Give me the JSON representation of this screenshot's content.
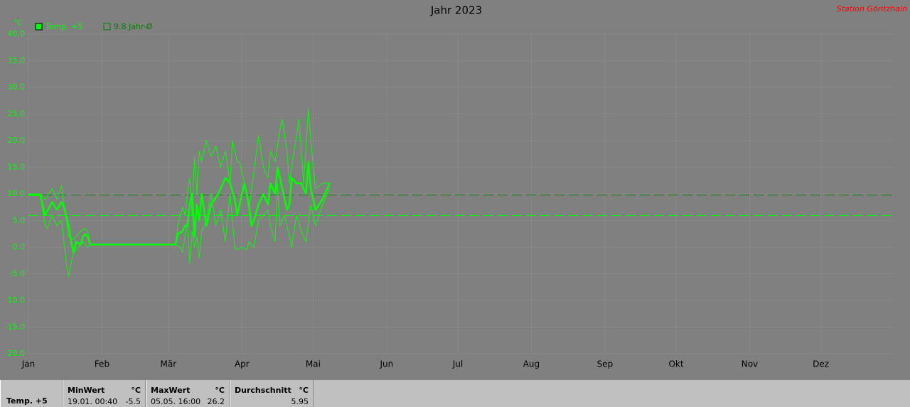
{
  "chart_data": {
    "type": "line",
    "title": "Jahr 2023",
    "station": "Station Göritzhain",
    "y_unit": "°C",
    "xlim": [
      0,
      365
    ],
    "ylim": [
      -20,
      40
    ],
    "xticks": [
      {
        "value": 0,
        "label": "Jan"
      },
      {
        "value": 31,
        "label": "Feb"
      },
      {
        "value": 59,
        "label": "Mär"
      },
      {
        "value": 90,
        "label": "Apr"
      },
      {
        "value": 120,
        "label": "Mai"
      },
      {
        "value": 151,
        "label": "Jun"
      },
      {
        "value": 181,
        "label": "Jul"
      },
      {
        "value": 212,
        "label": "Aug"
      },
      {
        "value": 243,
        "label": "Sep"
      },
      {
        "value": 273,
        "label": "Okt"
      },
      {
        "value": 304,
        "label": "Nov"
      },
      {
        "value": 334,
        "label": "Dez"
      }
    ],
    "yticks": [
      {
        "value": 40,
        "label": "40.0"
      },
      {
        "value": 35,
        "label": "35.0"
      },
      {
        "value": 30,
        "label": "30.0"
      },
      {
        "value": 25,
        "label": "25.0"
      },
      {
        "value": 20,
        "label": "20.0"
      },
      {
        "value": 15,
        "label": "15.0"
      },
      {
        "value": 10,
        "label": "10.0"
      },
      {
        "value": 5,
        "label": "5.0"
      },
      {
        "value": 0,
        "label": "0.0"
      },
      {
        "value": -5,
        "label": "-5.0"
      },
      {
        "value": -10,
        "label": "-10.0"
      },
      {
        "value": -15,
        "label": "-15.0"
      },
      {
        "value": -20,
        "label": "-20.0"
      }
    ],
    "grid": true,
    "series": [
      {
        "name": "Temp. +5",
        "color": "#00ff00",
        "width": 2.5,
        "x": [
          0,
          5,
          7,
          10,
          12,
          14,
          15,
          17,
          18,
          19,
          20,
          22,
          23,
          24,
          25,
          26,
          27,
          62,
          63,
          65,
          66,
          67,
          68,
          69,
          70,
          71,
          72,
          73,
          75,
          77,
          80,
          82,
          83,
          85,
          87,
          88,
          90,
          91,
          93,
          94,
          95,
          97,
          99,
          101,
          102,
          104,
          105,
          107,
          109,
          110,
          111,
          113,
          115,
          117,
          118,
          119,
          121,
          124,
          127
        ],
        "values": [
          9.8,
          9.8,
          6,
          8.5,
          7,
          8.5,
          7.5,
          4,
          1,
          -1,
          1,
          0.5,
          2,
          2.5,
          2,
          0.5,
          0.5,
          0.5,
          2.5,
          3,
          4,
          4,
          8,
          10,
          2,
          8,
          5,
          10,
          4,
          8,
          10,
          12,
          13,
          12,
          9,
          6,
          10,
          12,
          8,
          4,
          5,
          8,
          10,
          8,
          12,
          10,
          15,
          11,
          7,
          8,
          13,
          12,
          12,
          10,
          16,
          11,
          7,
          9,
          12
        ]
      },
      {
        "color": "#00ff00",
        "width": 1,
        "x": [
          0,
          5,
          7,
          10,
          12,
          14,
          15,
          17,
          19,
          22,
          24,
          25,
          26,
          62,
          63,
          64,
          65,
          66,
          67,
          68,
          69,
          70,
          71,
          72,
          73,
          75,
          77,
          79,
          81,
          83,
          85,
          86,
          88,
          89,
          91,
          93,
          95,
          97,
          99,
          101,
          102,
          104,
          106,
          107,
          109,
          110,
          112,
          114,
          116,
          118,
          119,
          121,
          124,
          127
        ],
        "values": [
          10,
          10,
          9,
          11,
          9,
          11.5,
          8,
          2,
          1.5,
          3,
          3.5,
          3,
          0.5,
          0.5,
          4,
          6,
          7.5,
          6,
          10,
          13,
          6,
          17,
          10,
          18,
          16,
          20,
          17,
          19,
          15,
          18,
          12,
          20,
          16,
          16,
          12,
          7,
          14,
          21,
          15,
          13,
          18,
          16,
          22,
          24,
          18,
          12,
          18,
          24,
          12,
          26,
          20,
          11,
          12,
          12
        ]
      },
      {
        "color": "#00ff00",
        "width": 1,
        "x": [
          0,
          5,
          7,
          8,
          10,
          12,
          14,
          16,
          17,
          18,
          19,
          21,
          23,
          25,
          26,
          62,
          64,
          65,
          66,
          67,
          68,
          69,
          70,
          71,
          72,
          73,
          75,
          77,
          79,
          81,
          83,
          85,
          87,
          88,
          90,
          92,
          93,
          95,
          97,
          99,
          101,
          102,
          104,
          105,
          106,
          108,
          110,
          111,
          113,
          115,
          117,
          119,
          121,
          124,
          127
        ],
        "values": [
          9.8,
          9.8,
          4,
          3.5,
          6,
          4,
          5,
          -3,
          -5.5,
          -3,
          -1,
          0,
          1,
          0,
          0.5,
          0.5,
          0,
          -1,
          2,
          5,
          -3,
          3,
          0,
          2,
          -2,
          3,
          5,
          10,
          4,
          7,
          1,
          10,
          0,
          -0.5,
          0,
          -0.5,
          1,
          0,
          5,
          6,
          7,
          4,
          1,
          12,
          4,
          6,
          2,
          0,
          6,
          3,
          1,
          8,
          4,
          8,
          11
        ]
      }
    ],
    "reference_line": {
      "value": 9.8,
      "label": "9.8 Jahr-Ø",
      "color": "#008000"
    },
    "average_line_color": "#00ff00"
  },
  "table": {
    "row_label": "Temp. +5",
    "columns": [
      {
        "header": "MinWert",
        "unit": "°C",
        "time": "19.01.  00:40",
        "value": -5.5
      },
      {
        "header": "MaxWert",
        "unit": "°C",
        "time": "05.05.  16:00",
        "value": 26.2
      },
      {
        "header": "Durchschnitt",
        "unit": "°C",
        "value": 5.95
      }
    ]
  }
}
